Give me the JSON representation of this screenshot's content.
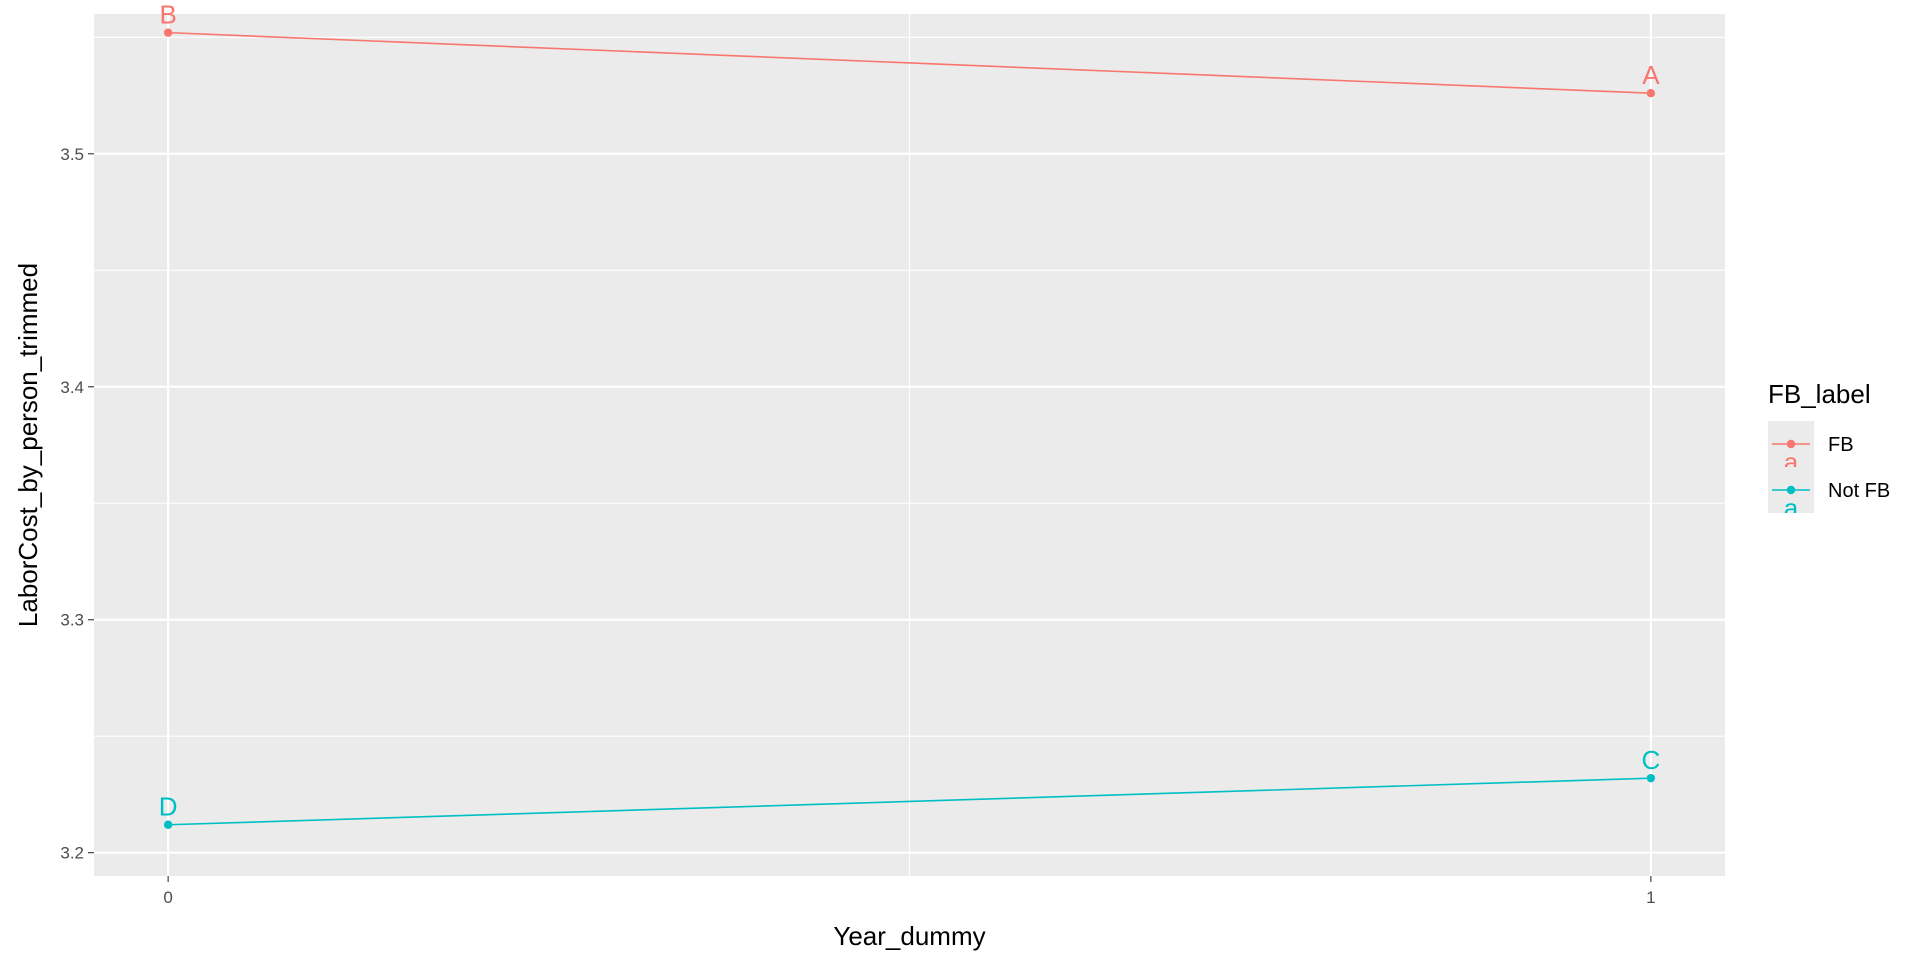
{
  "chart_data": {
    "type": "line",
    "xlabel": "Year_dummy",
    "ylabel": "LaborCost_by_person_trimmed",
    "x_ticks": [
      "0",
      "1"
    ],
    "y_ticks": [
      "3.2",
      "3.3",
      "3.4",
      "3.5"
    ],
    "xlim": [
      -0.05,
      1.05
    ],
    "ylim": [
      3.19,
      3.56
    ],
    "grid": true,
    "legend": {
      "title": "FB_label",
      "position": "right",
      "key_glyph": "a"
    },
    "series": [
      {
        "name": "FB",
        "color": "#F8766D",
        "points": [
          {
            "x": 0,
            "y": 3.552,
            "label": "B"
          },
          {
            "x": 1,
            "y": 3.526,
            "label": "A"
          }
        ]
      },
      {
        "name": "Not FB",
        "color": "#00BFC4",
        "points": [
          {
            "x": 0,
            "y": 3.212,
            "label": "D"
          },
          {
            "x": 1,
            "y": 3.232,
            "label": "C"
          }
        ]
      }
    ]
  }
}
